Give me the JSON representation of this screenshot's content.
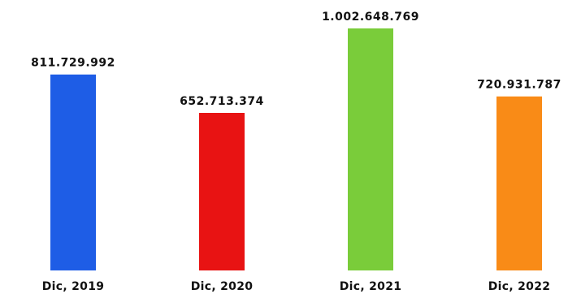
{
  "chart_data": {
    "type": "bar",
    "title": "",
    "xlabel": "",
    "ylabel": "",
    "categories": [
      "Dic, 2019",
      "Dic, 2020",
      "Dic, 2021",
      "Dic, 2022"
    ],
    "values": [
      811729992,
      652713374,
      1002648769,
      720931787
    ],
    "value_labels": [
      "811.729.992",
      "652.713.374",
      "1.002.648.769",
      "720.931.787"
    ],
    "colors": [
      "#1e5de6",
      "#e81313",
      "#7acc3a",
      "#f98b17"
    ],
    "ylim": [
      0,
      1002648769
    ],
    "grid": false,
    "legend": "none"
  }
}
